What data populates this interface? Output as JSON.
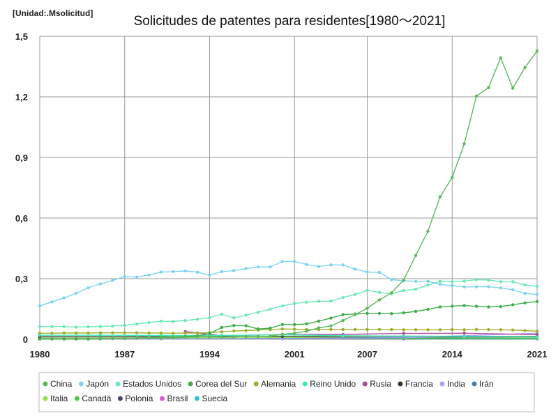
{
  "chart_data": {
    "type": "line",
    "title": "Solicitudes de patentes para residentes[1980～2021]",
    "unit_label": "[Unidad:.Msolicitud]",
    "xlabel": "",
    "ylabel": "",
    "xlim": [
      1980,
      2021
    ],
    "ylim": [
      0,
      1.5
    ],
    "x_ticks": [
      1980,
      1987,
      1994,
      2001,
      2007,
      2014,
      2021
    ],
    "x_tick_labels": [
      "1980",
      "1987",
      "1994",
      "2001",
      "2007",
      "2014",
      "2021"
    ],
    "y_ticks": [
      0,
      0.3,
      0.6,
      0.9,
      1.2,
      1.5
    ],
    "y_tick_labels": [
      "0",
      "0,3",
      "0,6",
      "0,9",
      "1,2",
      "1,5"
    ],
    "grid": true,
    "legend_position": "bottom",
    "series": [
      {
        "name": "China",
        "color": "#5cb85c",
        "x": [
          1985,
          1986,
          1987,
          1988,
          1989,
          1990,
          1991,
          1992,
          1993,
          1994,
          1995,
          1996,
          1997,
          1998,
          1999,
          2000,
          2001,
          2002,
          2003,
          2004,
          2005,
          2006,
          2007,
          2008,
          2009,
          2010,
          2011,
          2012,
          2013,
          2014,
          2015,
          2016,
          2017,
          2018,
          2019,
          2020,
          2021
        ],
        "values": [
          0.004,
          0.004,
          0.005,
          0.005,
          0.006,
          0.006,
          0.007,
          0.01,
          0.012,
          0.012,
          0.011,
          0.012,
          0.013,
          0.014,
          0.015,
          0.025,
          0.03,
          0.04,
          0.057,
          0.066,
          0.093,
          0.122,
          0.153,
          0.195,
          0.23,
          0.293,
          0.415,
          0.535,
          0.705,
          0.801,
          0.968,
          1.204,
          1.246,
          1.393,
          1.243,
          1.345,
          1.427
        ]
      },
      {
        "name": "Japón",
        "color": "#7fd3f0",
        "x": [
          1980,
          1981,
          1982,
          1983,
          1984,
          1985,
          1986,
          1987,
          1988,
          1989,
          1990,
          1991,
          1992,
          1993,
          1994,
          1995,
          1996,
          1997,
          1998,
          1999,
          2000,
          2001,
          2002,
          2003,
          2004,
          2005,
          2006,
          2007,
          2008,
          2009,
          2010,
          2011,
          2012,
          2013,
          2014,
          2015,
          2016,
          2017,
          2018,
          2019,
          2020,
          2021
        ],
        "values": [
          0.165,
          0.185,
          0.205,
          0.228,
          0.255,
          0.274,
          0.291,
          0.31,
          0.308,
          0.318,
          0.333,
          0.335,
          0.338,
          0.332,
          0.318,
          0.335,
          0.34,
          0.35,
          0.358,
          0.358,
          0.385,
          0.385,
          0.37,
          0.36,
          0.368,
          0.368,
          0.347,
          0.333,
          0.331,
          0.295,
          0.29,
          0.287,
          0.287,
          0.272,
          0.266,
          0.259,
          0.26,
          0.26,
          0.254,
          0.245,
          0.227,
          0.222
        ]
      },
      {
        "name": "Estados Unidos",
        "color": "#6ee8b5",
        "x": [
          1980,
          1981,
          1982,
          1983,
          1984,
          1985,
          1986,
          1987,
          1988,
          1989,
          1990,
          1991,
          1992,
          1993,
          1994,
          1995,
          1996,
          1997,
          1998,
          1999,
          2000,
          2001,
          2002,
          2003,
          2004,
          2005,
          2006,
          2007,
          2008,
          2009,
          2010,
          2011,
          2012,
          2013,
          2014,
          2015,
          2016,
          2017,
          2018,
          2019,
          2020,
          2021
        ],
        "values": [
          0.063,
          0.063,
          0.063,
          0.06,
          0.062,
          0.063,
          0.065,
          0.069,
          0.076,
          0.083,
          0.09,
          0.088,
          0.093,
          0.099,
          0.107,
          0.124,
          0.106,
          0.119,
          0.134,
          0.149,
          0.165,
          0.177,
          0.184,
          0.188,
          0.189,
          0.207,
          0.222,
          0.242,
          0.232,
          0.225,
          0.241,
          0.248,
          0.268,
          0.287,
          0.285,
          0.288,
          0.295,
          0.293,
          0.285,
          0.285,
          0.269,
          0.262
        ]
      },
      {
        "name": "Corea del Sur",
        "color": "#3daf4a",
        "x": [
          1980,
          1981,
          1982,
          1983,
          1984,
          1985,
          1986,
          1987,
          1988,
          1989,
          1990,
          1991,
          1992,
          1993,
          1994,
          1995,
          1996,
          1997,
          1998,
          1999,
          2000,
          2001,
          2002,
          2003,
          2004,
          2005,
          2006,
          2007,
          2008,
          2009,
          2010,
          2011,
          2012,
          2013,
          2014,
          2015,
          2016,
          2017,
          2018,
          2019,
          2020,
          2021
        ],
        "values": [
          0.001,
          0.001,
          0.001,
          0.001,
          0.001,
          0.002,
          0.003,
          0.004,
          0.005,
          0.007,
          0.009,
          0.011,
          0.014,
          0.017,
          0.028,
          0.059,
          0.068,
          0.067,
          0.051,
          0.055,
          0.073,
          0.073,
          0.076,
          0.09,
          0.105,
          0.122,
          0.125,
          0.128,
          0.128,
          0.127,
          0.131,
          0.138,
          0.148,
          0.16,
          0.164,
          0.167,
          0.163,
          0.16,
          0.162,
          0.171,
          0.18,
          0.187
        ]
      },
      {
        "name": "Alemania",
        "color": "#9eaf2e",
        "x": [
          1980,
          1981,
          1982,
          1983,
          1984,
          1985,
          1986,
          1987,
          1988,
          1989,
          1990,
          1991,
          1992,
          1993,
          1994,
          1995,
          1996,
          1997,
          1998,
          1999,
          2000,
          2001,
          2002,
          2003,
          2004,
          2005,
          2006,
          2007,
          2008,
          2009,
          2010,
          2011,
          2012,
          2013,
          2014,
          2015,
          2016,
          2017,
          2018,
          2019,
          2020,
          2021
        ],
        "values": [
          0.03,
          0.03,
          0.031,
          0.031,
          0.031,
          0.032,
          0.032,
          0.032,
          0.032,
          0.031,
          0.031,
          0.03,
          0.031,
          0.031,
          0.033,
          0.037,
          0.041,
          0.043,
          0.046,
          0.048,
          0.051,
          0.05,
          0.048,
          0.048,
          0.049,
          0.049,
          0.049,
          0.049,
          0.049,
          0.048,
          0.047,
          0.047,
          0.047,
          0.047,
          0.048,
          0.047,
          0.049,
          0.048,
          0.047,
          0.046,
          0.043,
          0.04
        ]
      },
      {
        "name": "Reino Unido",
        "color": "#3de8b8",
        "x": [
          1980,
          1985,
          1990,
          1995,
          2000,
          2005,
          2010,
          2015,
          2021
        ],
        "values": [
          0.02,
          0.02,
          0.019,
          0.019,
          0.022,
          0.018,
          0.016,
          0.015,
          0.012
        ]
      },
      {
        "name": "Rusia",
        "color": "#b0459a",
        "x": [
          1992,
          1995,
          2000,
          2005,
          2010,
          2015,
          2021
        ],
        "values": [
          0.038,
          0.018,
          0.023,
          0.024,
          0.029,
          0.03,
          0.023
        ]
      },
      {
        "name": "Francia",
        "color": "#2f3d1c",
        "x": [
          1980,
          1990,
          2000,
          2010,
          2021
        ],
        "values": [
          0.012,
          0.012,
          0.014,
          0.015,
          0.014
        ]
      },
      {
        "name": "India",
        "color": "#a9a4f0",
        "x": [
          1980,
          1990,
          2000,
          2010,
          2021
        ],
        "values": [
          0.001,
          0.002,
          0.002,
          0.008,
          0.03
        ]
      },
      {
        "name": "Irán",
        "color": "#4a7fa8",
        "x": [
          1980,
          1990,
          2000,
          2010,
          2021
        ],
        "values": [
          0.002,
          0.002,
          0.004,
          0.01,
          0.012
        ]
      },
      {
        "name": "Italia",
        "color": "#92e24a",
        "x": [
          1980,
          1990,
          2000,
          2010,
          2021
        ],
        "values": [
          0.005,
          0.006,
          0.008,
          0.009,
          0.01
        ]
      },
      {
        "name": "Canadá",
        "color": "#4ccb4c",
        "x": [
          1980,
          1990,
          2000,
          2010,
          2021
        ],
        "values": [
          0.002,
          0.003,
          0.004,
          0.005,
          0.004
        ]
      },
      {
        "name": "Polonia",
        "color": "#47476f",
        "x": [
          1980,
          1990,
          2000,
          2010,
          2021
        ],
        "values": [
          0.005,
          0.004,
          0.002,
          0.003,
          0.004
        ]
      },
      {
        "name": "Brasil",
        "color": "#d45fd0",
        "x": [
          1980,
          1990,
          2000,
          2010,
          2021
        ],
        "values": [
          0.002,
          0.002,
          0.003,
          0.004,
          0.005
        ]
      },
      {
        "name": "Suecia",
        "color": "#2fc3c8",
        "x": [
          1980,
          1990,
          2000,
          2010,
          2021
        ],
        "values": [
          0.004,
          0.003,
          0.003,
          0.002,
          0.002
        ]
      }
    ]
  }
}
